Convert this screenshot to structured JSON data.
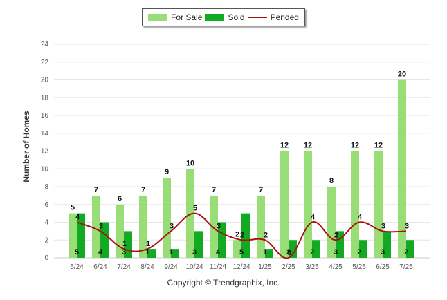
{
  "chart_data": {
    "type": "bar",
    "categories": [
      "5/24",
      "6/24",
      "7/24",
      "8/24",
      "9/24",
      "10/24",
      "11/24",
      "12/24",
      "1/25",
      "2/25",
      "3/25",
      "4/25",
      "5/25",
      "6/25",
      "7/25"
    ],
    "series": [
      {
        "name": "For Sale",
        "type": "bar",
        "color": "#99dd77",
        "values": [
          5,
          7,
          6,
          7,
          9,
          10,
          7,
          2,
          7,
          12,
          12,
          8,
          12,
          12,
          20
        ]
      },
      {
        "name": "Sold",
        "type": "bar",
        "color": "#11aa22",
        "values": [
          5,
          4,
          3,
          1,
          1,
          3,
          4,
          5,
          1,
          2,
          2,
          3,
          2,
          3,
          2
        ]
      },
      {
        "name": "Pended",
        "type": "line",
        "color": "#aa1111",
        "values": [
          4,
          3,
          1,
          1,
          3,
          5,
          3,
          2,
          2,
          0,
          4,
          2,
          4,
          3,
          3
        ]
      }
    ],
    "ylabel": "Number of Homes",
    "ylim": [
      0,
      24
    ],
    "yticks": [
      0,
      2,
      4,
      6,
      8,
      10,
      12,
      14,
      16,
      18,
      20,
      22,
      24
    ],
    "grid": true,
    "legend_position": "top-center"
  },
  "footer": {
    "copyright": "Copyright © Trendgraphix, Inc."
  }
}
